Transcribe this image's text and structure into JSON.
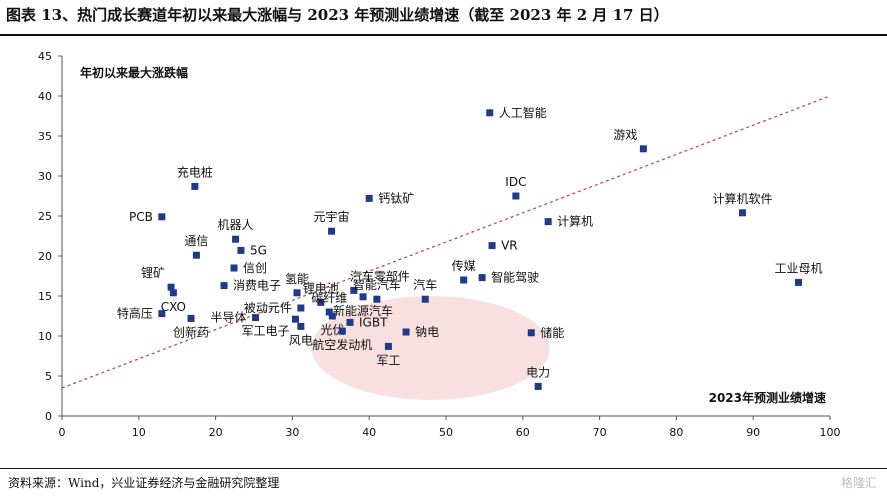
{
  "header": {
    "title": "图表 13、热门成长赛道年初以来最大涨幅与 2023 年预测业绩增速（截至 2023 年 2 月 17 日）"
  },
  "footer": {
    "source": "资料来源：Wind，兴业证券经济与金融研究院整理",
    "watermark": "格隆汇"
  },
  "chart_data": {
    "type": "scatter",
    "ylabel": "年初以来最大涨跌幅",
    "xlabel": "2023年预测业绩增速",
    "xlim": [
      0,
      100
    ],
    "ylim": [
      0,
      45
    ],
    "x_ticks": [
      "0",
      "10",
      "20",
      "30",
      "40",
      "50",
      "60",
      "70",
      "80",
      "90",
      "100"
    ],
    "y_ticks": [
      "0",
      "5",
      "10",
      "15",
      "20",
      "25",
      "30",
      "35",
      "40",
      "45"
    ],
    "grid": false,
    "trendline": {
      "style": "dashed",
      "color": "#c0504d",
      "from": [
        0,
        3.5
      ],
      "to": [
        100,
        40
      ]
    },
    "highlight_ellipse": {
      "cx": 48,
      "cy": 8.5,
      "rx": 15.5,
      "ry": 6.5,
      "color": "#f8e0e0"
    },
    "marker_color": "#1f3a8a",
    "points": [
      {
        "label": "人工智能",
        "x": 55.7,
        "y": 37.9,
        "label_pos": "right"
      },
      {
        "label": "游戏",
        "x": 75.7,
        "y": 33.4,
        "label_pos": "above-left"
      },
      {
        "label": "充电桩",
        "x": 17.3,
        "y": 28.7,
        "label_pos": "above"
      },
      {
        "label": "IDC",
        "x": 59.1,
        "y": 27.5,
        "label_pos": "above"
      },
      {
        "label": "钙钛矿",
        "x": 40.0,
        "y": 27.2,
        "label_pos": "right"
      },
      {
        "label": "计算机软件",
        "x": 88.6,
        "y": 25.4,
        "label_pos": "above"
      },
      {
        "label": "PCB",
        "x": 13.0,
        "y": 24.9,
        "label_pos": "left"
      },
      {
        "label": "计算机",
        "x": 63.3,
        "y": 24.3,
        "label_pos": "right"
      },
      {
        "label": "元宇宙",
        "x": 35.1,
        "y": 23.1,
        "label_pos": "above"
      },
      {
        "label": "机器人",
        "x": 22.6,
        "y": 22.1,
        "label_pos": "above"
      },
      {
        "label": "通信",
        "x": 17.5,
        "y": 20.1,
        "label_pos": "above"
      },
      {
        "label": "5G",
        "x": 23.3,
        "y": 20.7,
        "label_pos": "right"
      },
      {
        "label": "VR",
        "x": 56.0,
        "y": 21.3,
        "label_pos": "right"
      },
      {
        "label": "信创",
        "x": 22.4,
        "y": 18.5,
        "label_pos": "right"
      },
      {
        "label": "锂矿",
        "x": 14.2,
        "y": 16.1,
        "label_pos": "above-left"
      },
      {
        "label": "工业母机",
        "x": 95.9,
        "y": 16.7,
        "label_pos": "above"
      },
      {
        "label": "传媒",
        "x": 52.3,
        "y": 17.0,
        "label_pos": "above"
      },
      {
        "label": "智能驾驶",
        "x": 54.7,
        "y": 17.3,
        "label_pos": "right"
      },
      {
        "label": "氢能",
        "x": 30.6,
        "y": 15.4,
        "label_pos": "above"
      },
      {
        "label": "汽车零部件",
        "x": 38.0,
        "y": 15.7,
        "label_pos": "above-right"
      },
      {
        "label": "消费电子",
        "x": 21.1,
        "y": 16.3,
        "label_pos": "right"
      },
      {
        "label": "CXO",
        "x": 14.5,
        "y": 15.4,
        "label_pos": "below"
      },
      {
        "label": "锂电池",
        "x": 33.7,
        "y": 14.2,
        "label_pos": "above"
      },
      {
        "label": "智能汽车",
        "x": 41.0,
        "y": 14.6,
        "label_pos": "above"
      },
      {
        "label": "汽车",
        "x": 47.3,
        "y": 14.6,
        "label_pos": "above"
      },
      {
        "label": "被动元件",
        "x": 31.1,
        "y": 13.5,
        "label_pos": "left"
      },
      {
        "label": "碳纤维",
        "x": 34.8,
        "y": 13.0,
        "label_pos": "above"
      },
      {
        "label": "新能源汽车",
        "x": 39.2,
        "y": 14.9,
        "label_pos": "below"
      },
      {
        "label": "特高压",
        "x": 13.0,
        "y": 12.8,
        "label_pos": "left"
      },
      {
        "label": "半导体",
        "x": 25.2,
        "y": 12.3,
        "label_pos": "left"
      },
      {
        "label": "创新药",
        "x": 16.8,
        "y": 12.2,
        "label_pos": "below"
      },
      {
        "label": "军工电子",
        "x": 30.4,
        "y": 12.1,
        "label_pos": "below-left"
      },
      {
        "label": "光伏",
        "x": 35.2,
        "y": 12.5,
        "label_pos": "below"
      },
      {
        "label": "IGBT",
        "x": 37.5,
        "y": 11.7,
        "label_pos": "right"
      },
      {
        "label": "风电",
        "x": 31.1,
        "y": 11.2,
        "label_pos": "below"
      },
      {
        "label": "航空发动机",
        "x": 36.5,
        "y": 10.6,
        "label_pos": "below"
      },
      {
        "label": "钠电",
        "x": 44.8,
        "y": 10.5,
        "label_pos": "right"
      },
      {
        "label": "储能",
        "x": 61.1,
        "y": 10.4,
        "label_pos": "right"
      },
      {
        "label": "军工",
        "x": 42.5,
        "y": 8.7,
        "label_pos": "below"
      },
      {
        "label": "电力",
        "x": 62.0,
        "y": 3.7,
        "label_pos": "above"
      }
    ]
  }
}
